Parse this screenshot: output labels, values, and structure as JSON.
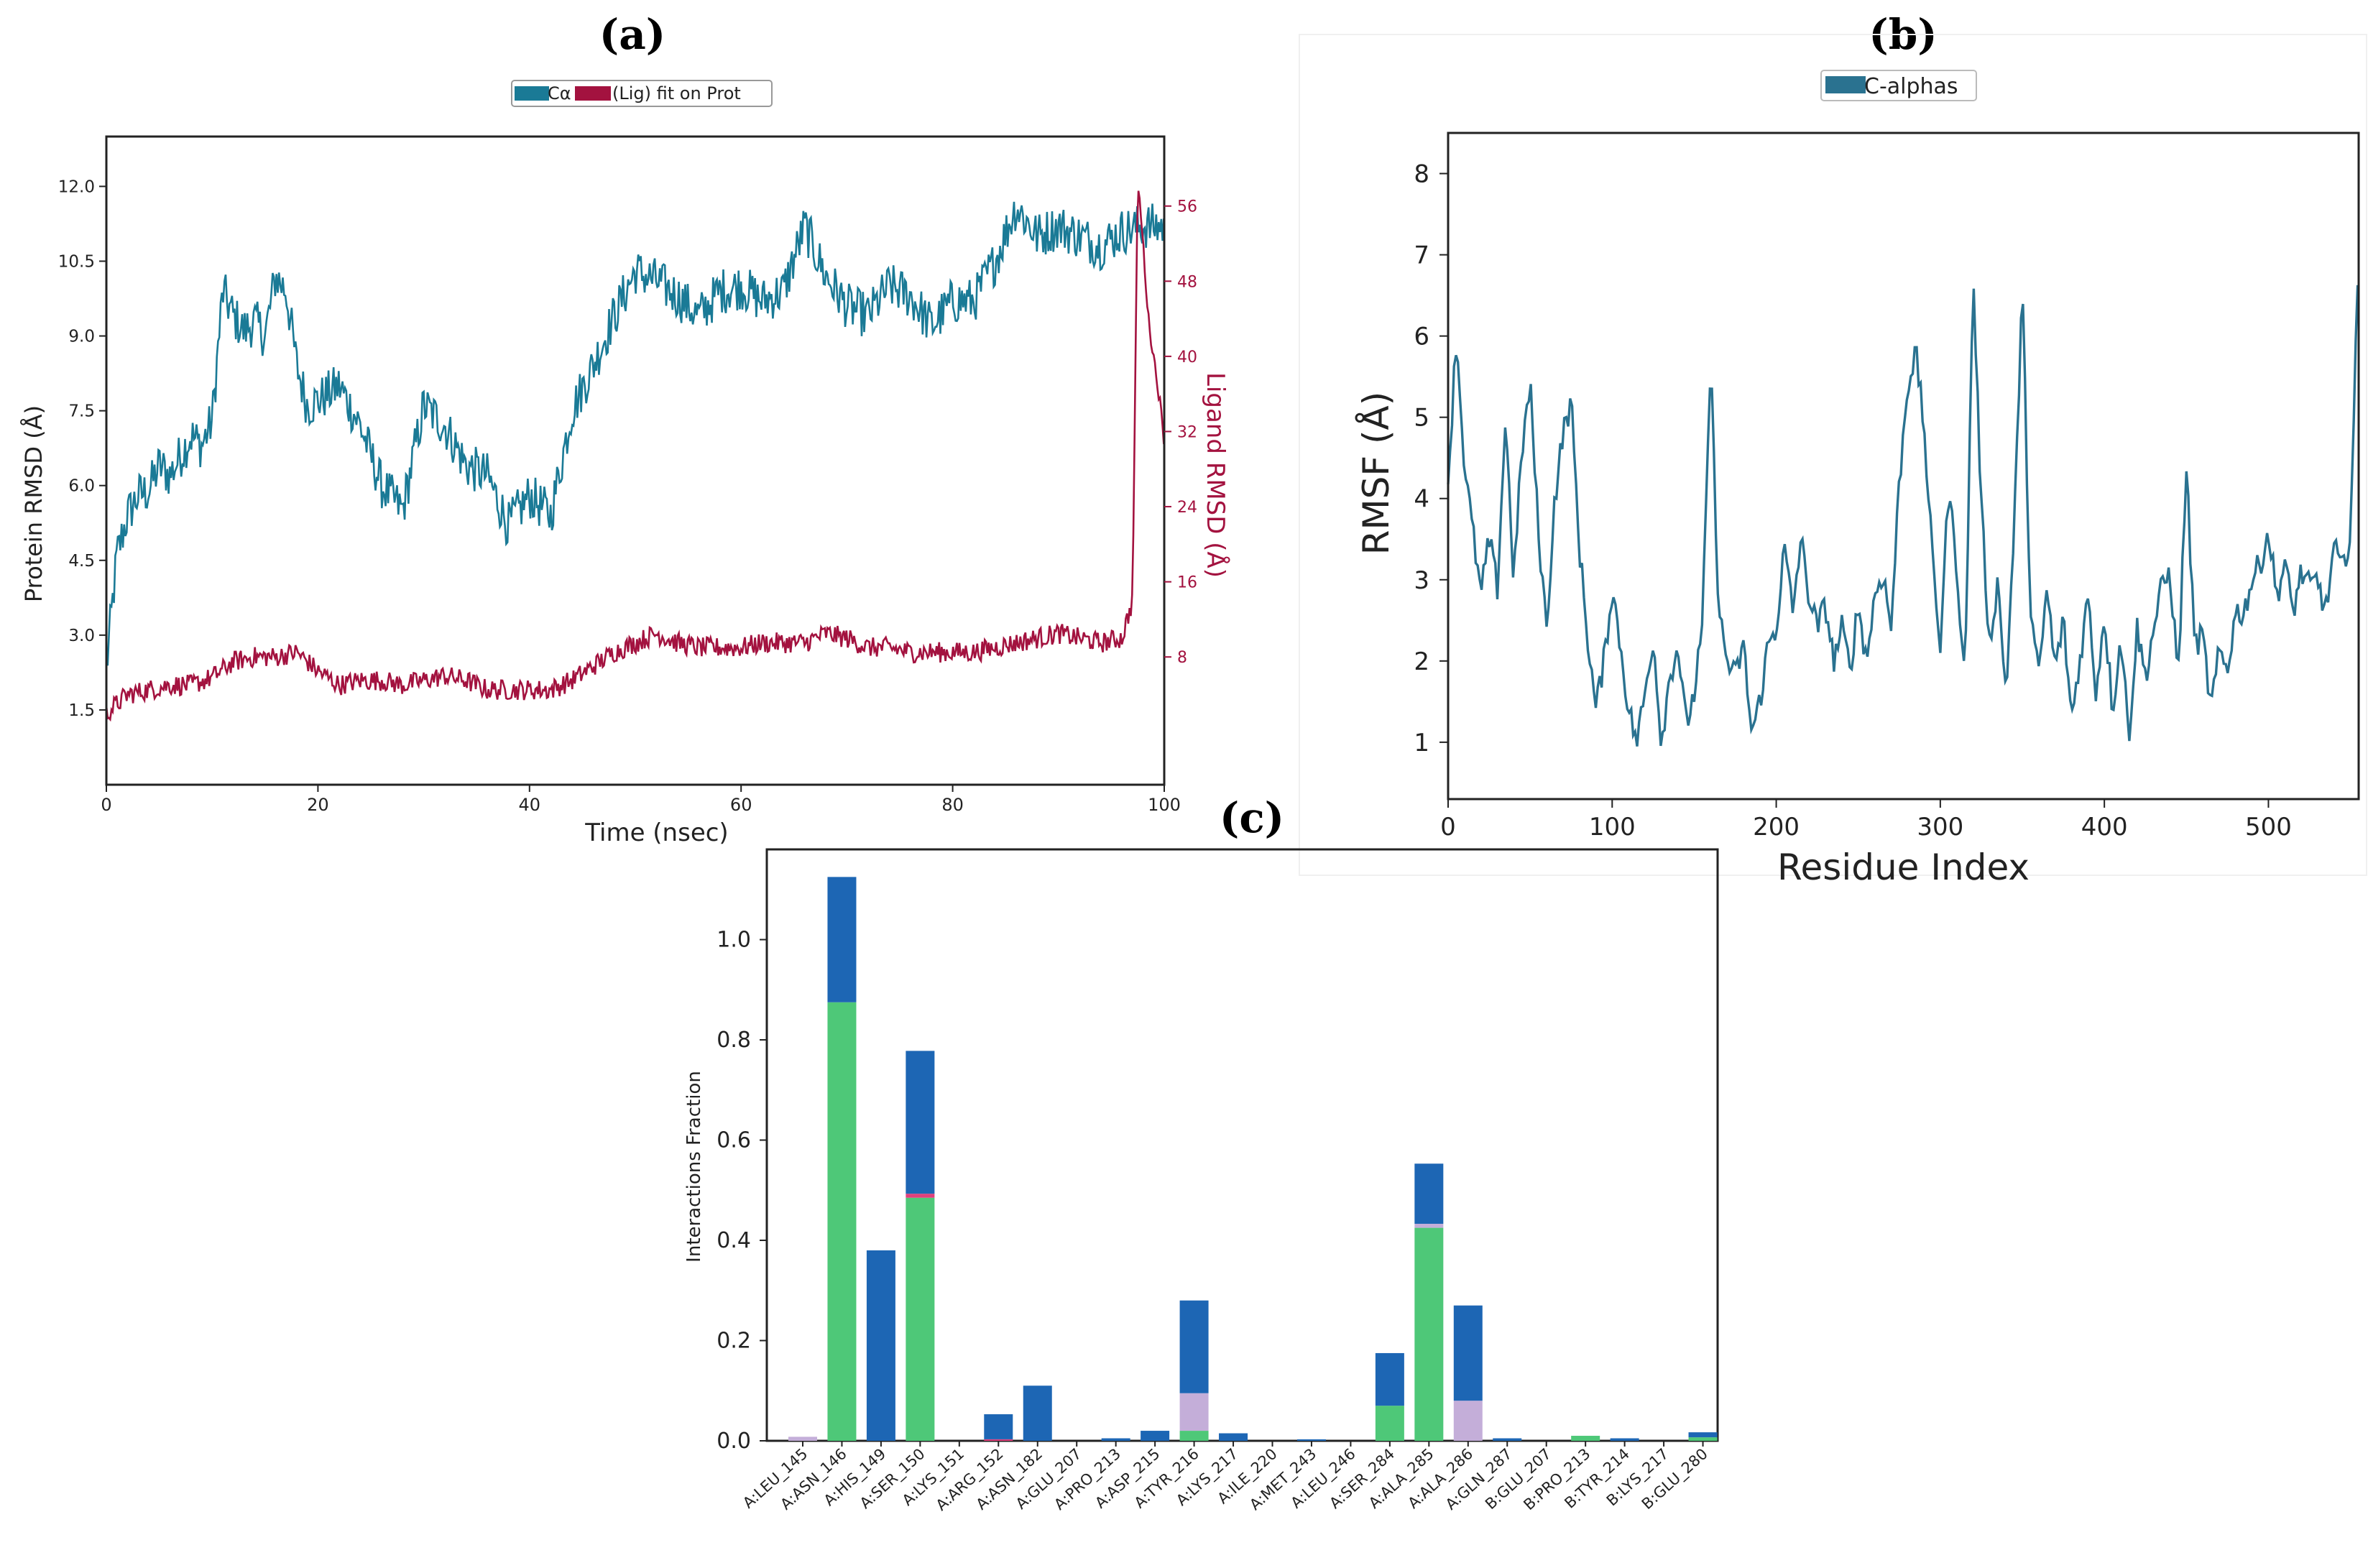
{
  "panels": {
    "a": {
      "letter": "(a)"
    },
    "b": {
      "letter": "(b)"
    },
    "c": {
      "letter": "(c)"
    }
  },
  "chart_data": [
    {
      "id": "a",
      "type": "line",
      "title": "",
      "legend": {
        "entries": [
          "Cα",
          "(Lig) fit on Prot"
        ],
        "placement": "top-center"
      },
      "colors": {
        "protein": "#1a7a96",
        "ligand": "#a3123f"
      },
      "xlabel": "Time (nsec)",
      "ylabel": "Protein RMSD (Å)",
      "y2label": "Ligand RMSD (Å)",
      "xlim": [
        0,
        100
      ],
      "ylim": [
        0.0,
        13.0
      ],
      "y2lim": [
        -5.6,
        63.4
      ],
      "xticks": [
        0,
        20,
        40,
        60,
        80,
        100
      ],
      "yticks": [
        "1.5",
        "3.0",
        "4.5",
        "6.0",
        "7.5",
        "9.0",
        "10.5",
        "12.0"
      ],
      "y2ticks": [
        "8",
        "16",
        "24",
        "32",
        "40",
        "48",
        "56"
      ],
      "series": [
        {
          "name": "Cα",
          "axis": "left",
          "x": [
            0,
            1,
            2,
            3,
            4,
            5,
            6,
            7,
            8,
            9,
            10,
            11,
            12,
            13,
            14,
            15,
            16,
            17,
            18,
            19,
            20,
            22,
            24,
            26,
            28,
            30,
            32,
            34,
            36,
            38,
            40,
            42,
            44,
            46,
            48,
            50,
            52,
            54,
            56,
            58,
            60,
            62,
            64,
            66,
            68,
            70,
            72,
            74,
            76,
            78,
            80,
            82,
            84,
            86,
            88,
            90,
            92,
            94,
            96,
            98,
            100
          ],
          "values": [
            2.3,
            4.6,
            5.4,
            5.8,
            5.9,
            6.4,
            6.2,
            6.6,
            7.0,
            6.8,
            7.3,
            9.9,
            9.4,
            9.1,
            9.3,
            9.0,
            10.2,
            9.9,
            8.4,
            7.6,
            7.7,
            8.0,
            7.2,
            6.0,
            5.5,
            7.6,
            7.2,
            6.4,
            6.2,
            5.2,
            5.8,
            5.4,
            7.5,
            8.4,
            9.4,
            10.3,
            10.1,
            9.8,
            9.4,
            9.9,
            10.0,
            9.7,
            9.9,
            11.2,
            10.2,
            9.6,
            9.4,
            10.0,
            9.8,
            9.2,
            9.7,
            9.7,
            10.5,
            11.6,
            11.0,
            11.2,
            11.0,
            10.8,
            11.1,
            11.2,
            11.2
          ]
        },
        {
          "name": "(Lig) fit on Prot",
          "axis": "right",
          "x": [
            0,
            2,
            4,
            6,
            8,
            10,
            12,
            14,
            16,
            18,
            20,
            22,
            24,
            26,
            28,
            30,
            32,
            34,
            36,
            38,
            40,
            42,
            44,
            46,
            48,
            50,
            52,
            54,
            56,
            58,
            60,
            62,
            64,
            66,
            68,
            70,
            72,
            74,
            76,
            78,
            80,
            82,
            84,
            86,
            88,
            90,
            92,
            94,
            96,
            97,
            97.5,
            98,
            98.5,
            99,
            99.5,
            100
          ],
          "values": [
            2,
            4,
            4.5,
            5,
            5,
            5.8,
            7.5,
            8,
            8,
            8.5,
            6.5,
            5,
            5.5,
            5.5,
            5,
            5.5,
            6,
            5.5,
            4.5,
            4.5,
            4.5,
            4.5,
            5.5,
            7,
            8.5,
            9.5,
            10.5,
            9.5,
            9,
            9,
            9,
            9.5,
            9.5,
            9.5,
            10.5,
            10,
            9,
            9,
            8.5,
            8.5,
            8.5,
            8.5,
            9,
            9.5,
            10,
            10.5,
            10,
            9.5,
            10,
            14,
            59,
            52,
            44,
            40,
            36,
            31
          ]
        }
      ]
    },
    {
      "id": "b",
      "type": "line",
      "legend": {
        "entries": [
          "C-alphas"
        ],
        "placement": "top-center"
      },
      "colors": {
        "line": "#2a7290"
      },
      "xlabel": "Residue Index",
      "ylabel": "RMSF (Å)",
      "xlim": [
        0,
        555
      ],
      "ylim": [
        0.3,
        8.5
      ],
      "xticks": [
        0,
        100,
        200,
        300,
        400,
        500
      ],
      "yticks": [
        1,
        2,
        3,
        4,
        5,
        6,
        7,
        8
      ],
      "series": [
        {
          "name": "C-alphas",
          "x": [
            0,
            5,
            10,
            15,
            20,
            25,
            30,
            35,
            40,
            45,
            50,
            55,
            60,
            65,
            70,
            75,
            80,
            85,
            90,
            95,
            100,
            105,
            110,
            115,
            120,
            125,
            130,
            135,
            140,
            145,
            150,
            155,
            160,
            165,
            170,
            175,
            180,
            185,
            190,
            195,
            200,
            205,
            210,
            215,
            220,
            225,
            230,
            235,
            240,
            245,
            250,
            255,
            260,
            265,
            270,
            275,
            280,
            285,
            290,
            295,
            300,
            305,
            310,
            315,
            320,
            325,
            330,
            335,
            340,
            345,
            350,
            355,
            360,
            365,
            370,
            375,
            380,
            385,
            390,
            395,
            400,
            405,
            410,
            415,
            420,
            425,
            430,
            435,
            440,
            445,
            450,
            455,
            460,
            465,
            470,
            475,
            480,
            485,
            490,
            495,
            500,
            505,
            510,
            515,
            520,
            525,
            530,
            535,
            540,
            545,
            550,
            555
          ],
          "values": [
            4.2,
            6.0,
            4.4,
            3.6,
            2.8,
            3.5,
            2.9,
            5.0,
            3.0,
            4.6,
            5.4,
            3.6,
            2.4,
            4.0,
            4.8,
            5.2,
            3.4,
            2.3,
            1.4,
            2.0,
            2.9,
            2.2,
            1.4,
            1.0,
            1.6,
            2.3,
            1.0,
            1.8,
            2.2,
            1.2,
            1.6,
            2.4,
            5.7,
            2.6,
            2.0,
            1.8,
            2.2,
            1.1,
            1.5,
            2.2,
            2.4,
            3.4,
            2.6,
            3.5,
            2.8,
            2.4,
            2.7,
            2.0,
            2.4,
            1.9,
            2.7,
            2.0,
            2.8,
            3.1,
            2.4,
            4.2,
            5.4,
            5.8,
            4.9,
            3.3,
            2.2,
            4.1,
            3.2,
            1.7,
            6.8,
            3.9,
            2.2,
            3.0,
            1.6,
            3.6,
            6.6,
            2.6,
            1.8,
            2.9,
            1.9,
            2.5,
            1.3,
            2.0,
            2.8,
            1.6,
            2.6,
            1.4,
            2.3,
            1.1,
            2.4,
            1.8,
            2.4,
            2.9,
            3.1,
            1.8,
            4.4,
            2.2,
            2.3,
            1.4,
            2.1,
            1.9,
            2.6,
            2.6,
            3.0,
            3.2,
            3.6,
            2.8,
            3.2,
            2.6,
            3.1,
            2.9,
            3.0,
            2.6,
            3.4,
            3.1,
            3.6,
            7.0
          ]
        }
      ]
    },
    {
      "id": "c",
      "type": "bar",
      "stacked": true,
      "xlabel": "",
      "ylabel": "Interactions Fraction",
      "ylim": [
        0.0,
        1.18
      ],
      "yticks": [
        "0.0",
        "0.2",
        "0.4",
        "0.6",
        "0.8",
        "1.0"
      ],
      "colors": {
        "green": "#4ec878",
        "pink": "#e0407c",
        "lavender": "#c4aed9",
        "blue": "#1d66b4"
      },
      "categories": [
        "A:LEU_145",
        "A:ASN_146",
        "A:HIS_149",
        "A:SER_150",
        "A:LYS_151",
        "A:ARG_152",
        "A:ASN_182",
        "A:GLU_207",
        "A:PRO_213",
        "A:ASP_215",
        "A:TYR_216",
        "A:LYS_217",
        "A:ILE_220",
        "A:MET_243",
        "A:LEU_246",
        "A:SER_284",
        "A:ALA_285",
        "A:ALA_286",
        "A:GLN_287",
        "B:GLU_207",
        "B:PRO_213",
        "B:TYR_214",
        "B:LYS_217",
        "B:GLU_280"
      ],
      "series": [
        {
          "name": "green",
          "values": [
            0,
            0.875,
            0,
            0.485,
            0,
            0,
            0,
            0,
            0,
            0,
            0.02,
            0,
            0,
            0,
            0,
            0.07,
            0.425,
            0,
            0,
            0,
            0.01,
            0,
            0,
            0.007
          ]
        },
        {
          "name": "pink",
          "values": [
            0,
            0,
            0,
            0.008,
            0,
            0.003,
            0,
            0,
            0,
            0,
            0,
            0,
            0,
            0,
            0,
            0,
            0,
            0,
            0,
            0,
            0,
            0,
            0,
            0
          ]
        },
        {
          "name": "lavender",
          "values": [
            0.008,
            0,
            0,
            0,
            0,
            0,
            0,
            0,
            0,
            0,
            0.075,
            0,
            0,
            0,
            0,
            0,
            0.008,
            0.08,
            0,
            0,
            0,
            0,
            0,
            0
          ]
        },
        {
          "name": "blue",
          "values": [
            0,
            0.25,
            0.38,
            0.285,
            0,
            0.05,
            0.11,
            0,
            0.005,
            0.02,
            0.185,
            0.015,
            0,
            0.003,
            0,
            0.105,
            0.12,
            0.19,
            0.005,
            0,
            0,
            0.005,
            0,
            0.01
          ]
        }
      ]
    }
  ]
}
